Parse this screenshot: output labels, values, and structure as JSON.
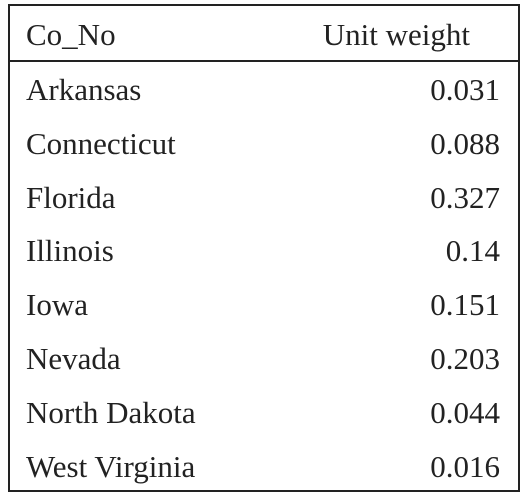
{
  "table": {
    "header": [
      "Co_No",
      "Unit weight"
    ],
    "rows": [
      [
        "Arkansas",
        "0.031"
      ],
      [
        "Connecticut",
        "0.088"
      ],
      [
        "Florida",
        "0.327"
      ],
      [
        "Illinois",
        "0.14"
      ],
      [
        "Iowa",
        "0.151"
      ],
      [
        "Nevada",
        "0.203"
      ],
      [
        "North Dakota",
        "0.044"
      ],
      [
        "West Virginia",
        "0.016"
      ]
    ]
  }
}
